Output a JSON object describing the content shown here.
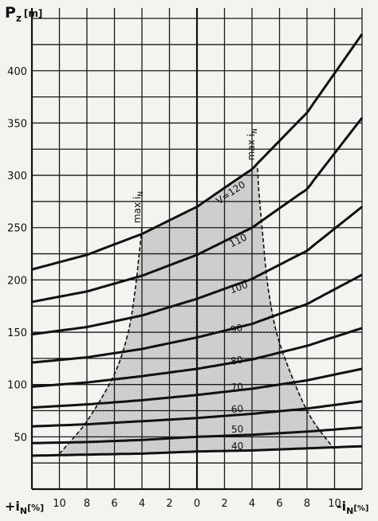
{
  "chart_data": {
    "type": "line",
    "title": "",
    "ylabel": {
      "main": "P",
      "sub": "z",
      "unit": "[m]"
    },
    "xlabel_left": {
      "sign": "+i",
      "sub": "N",
      "unit": "[%]"
    },
    "xlabel_right": {
      "sign": "-i",
      "sub": "N",
      "unit": "[%]"
    },
    "xlim": [
      -12,
      12
    ],
    "ylim": [
      0,
      460
    ],
    "x_tick_values": [
      -10,
      -8,
      -6,
      -4,
      -2,
      0,
      2,
      4,
      6,
      8,
      10
    ],
    "x_tick_labels": [
      "10",
      "8",
      "6",
      "4",
      "2",
      "0",
      "2",
      "4",
      "6",
      "8",
      "10"
    ],
    "y_tick_values": [
      50,
      100,
      150,
      200,
      250,
      300,
      350,
      400
    ],
    "y_tick_labels": [
      "50",
      "100",
      "150",
      "200",
      "250",
      "300",
      "350",
      "400"
    ],
    "grid": true,
    "series": [
      {
        "name": "40",
        "label_at": [
          2.5,
          38
        ],
        "x": [
          -12,
          -8,
          -4,
          0,
          4,
          8,
          12
        ],
        "y": [
          32,
          33,
          34,
          36,
          37,
          39,
          41
        ]
      },
      {
        "name": "50",
        "label_at": [
          2.5,
          54
        ],
        "x": [
          -12,
          -8,
          -4,
          0,
          4,
          8,
          12
        ],
        "y": [
          44,
          45,
          47,
          50,
          52,
          55,
          59
        ]
      },
      {
        "name": "60",
        "label_at": [
          2.5,
          73
        ],
        "x": [
          -12,
          -8,
          -4,
          0,
          4,
          8,
          12
        ],
        "y": [
          60,
          62,
          65,
          68,
          72,
          77,
          84
        ]
      },
      {
        "name": "70",
        "label_at": [
          2.5,
          94
        ],
        "x": [
          -12,
          -8,
          -4,
          0,
          4,
          8,
          12
        ],
        "y": [
          78,
          81,
          85,
          90,
          96,
          104,
          115
        ]
      },
      {
        "name": "80",
        "label_at": [
          2.5,
          119
        ],
        "x": [
          -12,
          -8,
          -4,
          0,
          4,
          8,
          12
        ],
        "y": [
          98,
          102,
          108,
          115,
          124,
          137,
          154
        ]
      },
      {
        "name": "90",
        "label_at": [
          2.5,
          149
        ],
        "x": [
          -12,
          -8,
          -4,
          0,
          4,
          8,
          12
        ],
        "y": [
          121,
          126,
          134,
          145,
          158,
          177,
          205
        ]
      },
      {
        "name": "100",
        "label_at": [
          2.5,
          187
        ],
        "x": [
          -12,
          -8,
          -4,
          0,
          4,
          8,
          12
        ],
        "y": [
          148,
          155,
          166,
          182,
          201,
          228,
          270
        ]
      },
      {
        "name": "110",
        "label_at": [
          2.5,
          231
        ],
        "x": [
          -12,
          -8,
          -4,
          0,
          4,
          8,
          12
        ],
        "y": [
          179,
          189,
          204,
          224,
          250,
          287,
          355
        ]
      },
      {
        "name": "V=120",
        "label_at": [
          1.6,
          272
        ],
        "x": [
          -12,
          -8,
          -4,
          0,
          4,
          8,
          12
        ],
        "y": [
          210,
          224,
          244,
          270,
          306,
          360,
          435
        ]
      }
    ],
    "limit_curves": [
      {
        "name": "max i_N",
        "side": "+",
        "label_at": [
          -4.0,
          252
        ],
        "x": [
          -10,
          -8,
          -6,
          -5,
          -4.5,
          -4.2,
          -4
        ],
        "y": [
          34,
          65,
          110,
          150,
          190,
          225,
          250
        ]
      },
      {
        "name": "max i_N",
        "side": "-",
        "label_at": [
          4.3,
          312
        ],
        "x": [
          10,
          8,
          6,
          5.2,
          4.8,
          4.5,
          4.4
        ],
        "y": [
          38,
          75,
          140,
          190,
          240,
          285,
          309
        ]
      }
    ],
    "limit_label": {
      "main": "max i",
      "sub": "N"
    },
    "shaded_region": "between the two max i_N limit curves, above the 40 curve and below the V=120 curve"
  }
}
